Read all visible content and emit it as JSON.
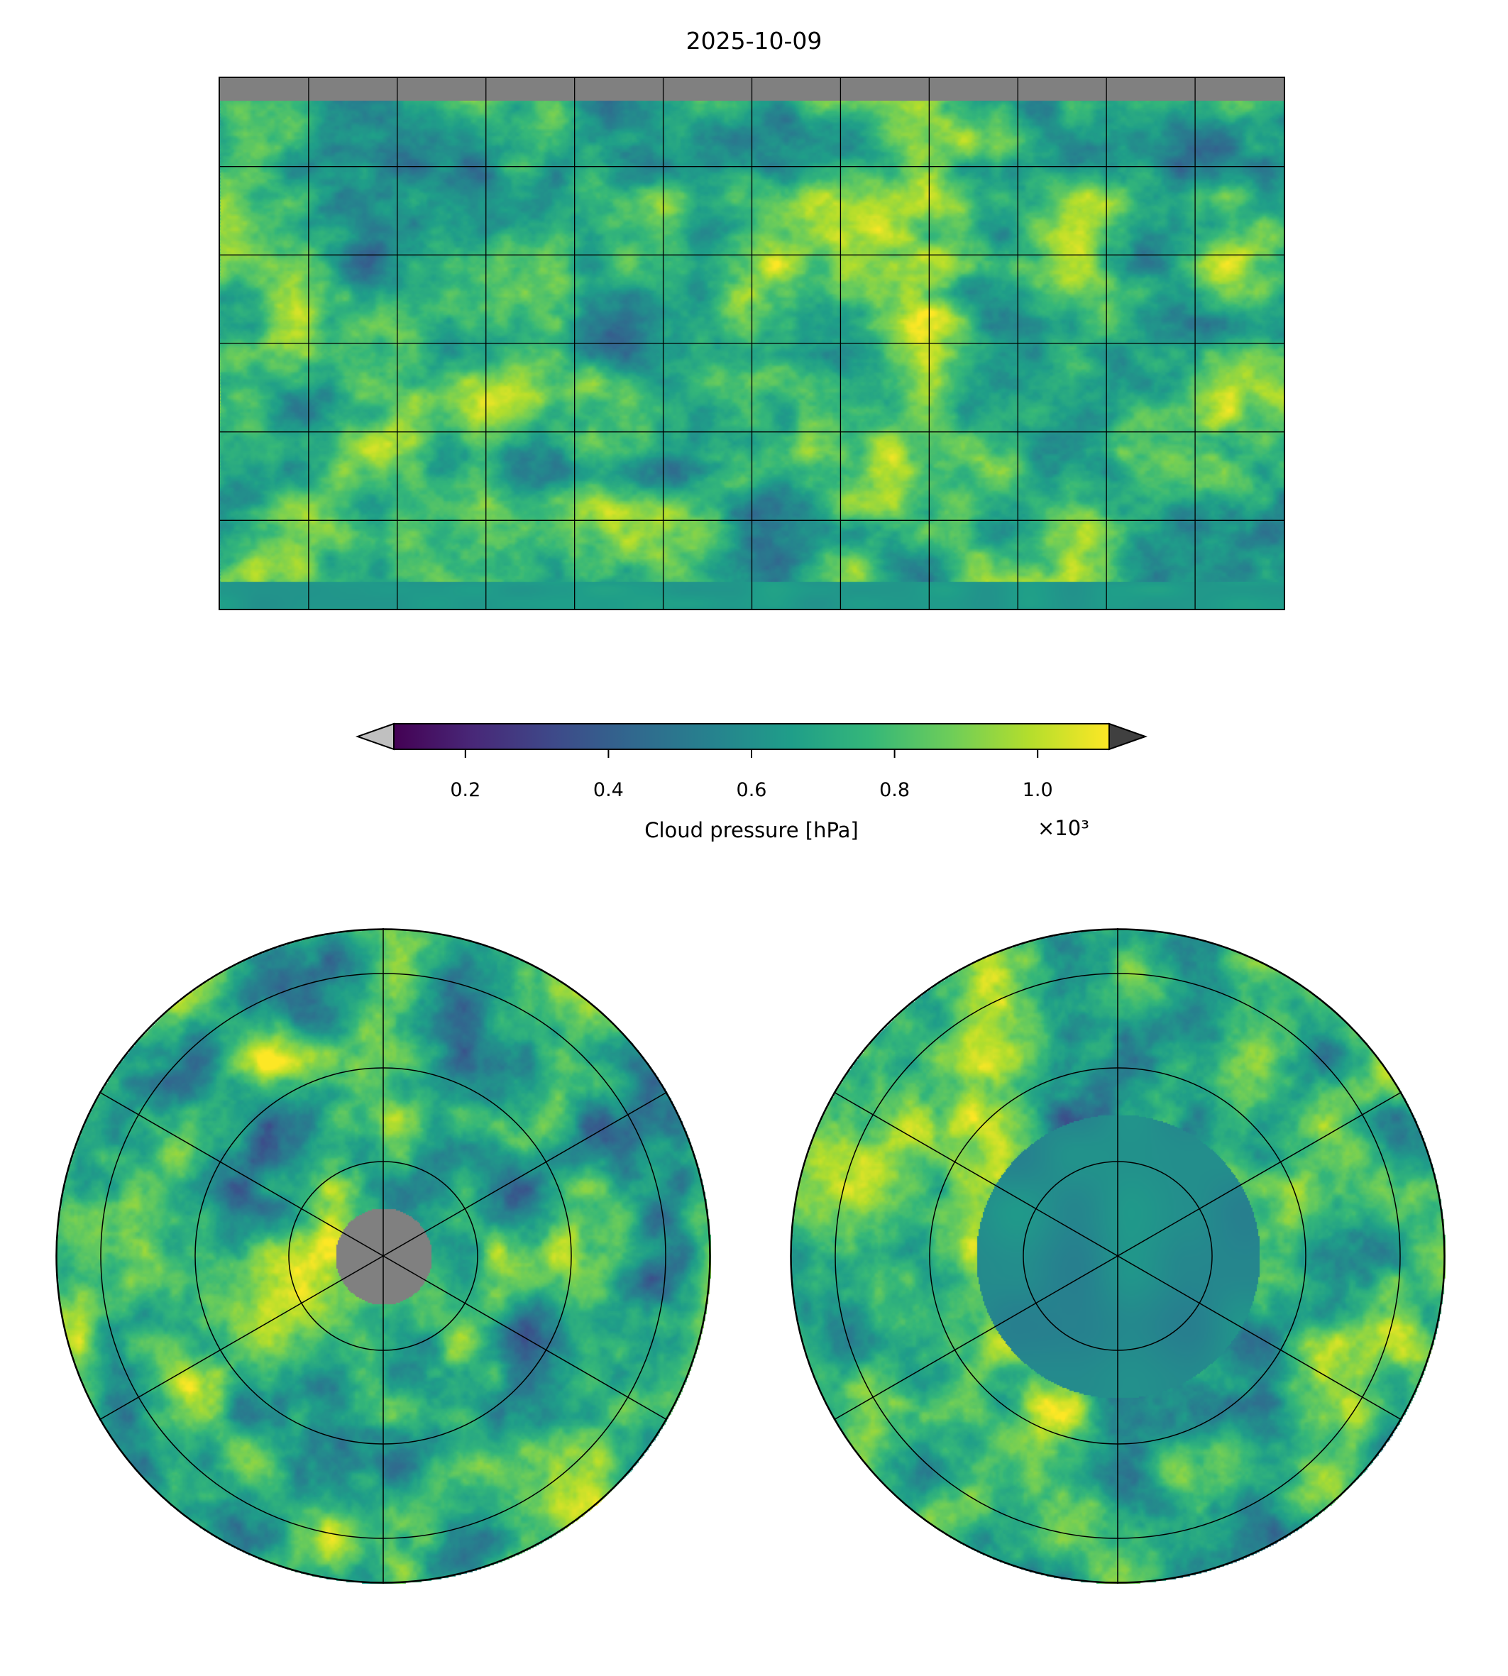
{
  "title": "2025-10-09",
  "chart_data": {
    "type": "heatmap",
    "title": "2025-10-09",
    "panels": [
      "global-equirectangular",
      "north-polar-stereographic",
      "south-polar-stereographic"
    ],
    "variable": "Cloud pressure",
    "colorbar": {
      "label": "Cloud pressure [hPa]",
      "multiplier": "×10³",
      "colormap": "viridis",
      "range": [
        0.1,
        1.1
      ],
      "extend": "both",
      "under_color": "#c0c0c0",
      "over_color": "#404040",
      "ticks": [
        0.2,
        0.4,
        0.6,
        0.8,
        1.0
      ],
      "tick_labels": [
        "0.2",
        "0.4",
        "0.6",
        "0.8",
        "1.0"
      ]
    },
    "gridlines": {
      "lon_step": 30,
      "lat_lines": [
        60,
        30,
        0,
        -30,
        -60
      ]
    },
    "missing_color": "#808080"
  }
}
